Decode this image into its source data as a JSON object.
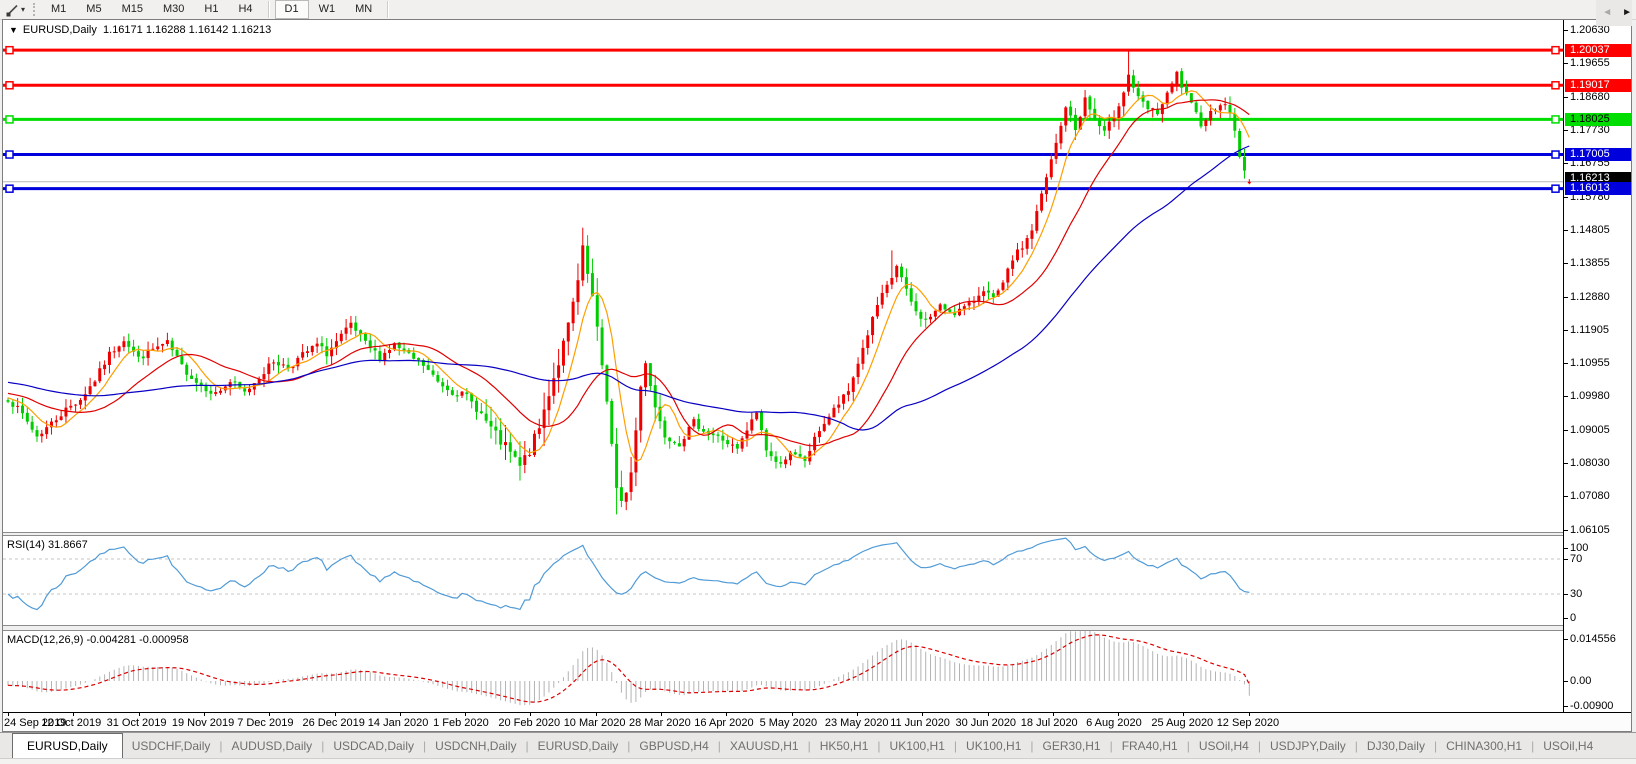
{
  "toolbar": {
    "timeframes": [
      "M1",
      "M5",
      "M15",
      "M30",
      "H1",
      "H4",
      "D1",
      "W1",
      "MN"
    ],
    "active": "D1",
    "draw_tool_caret": "▾"
  },
  "header": {
    "collapse_icon": "▼",
    "symbol": "EURUSD,Daily",
    "ohlc": "1.16171 1.16288 1.16142 1.16213"
  },
  "rsi_panel": {
    "title": "RSI(14) 31.8667",
    "axis_labels": [
      "100",
      "70",
      "30",
      "0"
    ],
    "line_color": "#509bd7",
    "level_color": "#c6c6c6"
  },
  "macd_panel": {
    "title": "MACD(12,26,9) -0.004281 -0.000958",
    "axis_labels": [
      "0.014556",
      "0.00",
      "-0.00900"
    ],
    "hist_color": "#b3b3b3",
    "signal_color": "#dd0000"
  },
  "tabs": {
    "items": [
      "EURUSD,Daily",
      "USDCHF,Daily",
      "AUDUSD,Daily",
      "USDCAD,Daily",
      "USDCNH,Daily",
      "EURUSD,Daily",
      "GBPUSD,H4",
      "XAUUSD,H1",
      "HK50,H1",
      "UK100,H1",
      "UK100,H1",
      "GER30,H1",
      "FRA40,H1",
      "USOil,H4",
      "USDJPY,Daily",
      "DJ30,Daily",
      "CHINA300,H1",
      "USOil,H4"
    ],
    "active_index": 0,
    "scroll_left": "◄",
    "scroll_right": "►"
  },
  "chart_data": {
    "type": "candlestick",
    "title": "EURUSD,Daily",
    "bars_total": 258,
    "y_ticks": [
      "1.20630",
      "1.19655",
      "1.18680",
      "1.17730",
      "1.16755",
      "1.15780",
      "1.14805",
      "1.13855",
      "1.12880",
      "1.11905",
      "1.10955",
      "1.09980",
      "1.09005",
      "1.08030",
      "1.07080",
      "1.06105"
    ],
    "x_axis_dates": [
      "24 Sep 2019",
      "12 Oct 2019",
      "31 Oct 2019",
      "19 Nov 2019",
      "7 Dec 2019",
      "26 Dec 2019",
      "14 Jan 2020",
      "1 Feb 2020",
      "20 Feb 2020",
      "10 Mar 2020",
      "28 Mar 2020",
      "16 Apr 2020",
      "5 May 2020",
      "23 May 2020",
      "11 Jun 2020",
      "30 Jun 2020",
      "18 Jul 2020",
      "6 Aug 2020",
      "25 Aug 2020",
      "12 Sep 2020"
    ],
    "close_path_anchors": [
      [
        0,
        1.0992
      ],
      [
        3,
        1.0945
      ],
      [
        6,
        1.0882
      ],
      [
        9,
        1.092
      ],
      [
        12,
        1.096
      ],
      [
        15,
        1.099
      ],
      [
        18,
        1.1045
      ],
      [
        21,
        1.112
      ],
      [
        24,
        1.1165
      ],
      [
        27,
        1.1108
      ],
      [
        30,
        1.1135
      ],
      [
        33,
        1.1152
      ],
      [
        36,
        1.1085
      ],
      [
        39,
        1.104
      ],
      [
        43,
        1.1005
      ],
      [
        46,
        1.104
      ],
      [
        49,
        1.1008
      ],
      [
        52,
        1.1055
      ],
      [
        55,
        1.11
      ],
      [
        58,
        1.1082
      ],
      [
        61,
        1.1118
      ],
      [
        64,
        1.1148
      ],
      [
        66,
        1.1122
      ],
      [
        69,
        1.1172
      ],
      [
        71,
        1.1205
      ],
      [
        74,
        1.115
      ],
      [
        77,
        1.1112
      ],
      [
        80,
        1.1148
      ],
      [
        83,
        1.1115
      ],
      [
        86,
        1.1088
      ],
      [
        89,
        1.104
      ],
      [
        92,
        1.1012
      ],
      [
        95,
        1.0998
      ],
      [
        98,
        1.0945
      ],
      [
        101,
        1.0882
      ],
      [
        104,
        1.0832
      ],
      [
        106,
        1.0792
      ],
      [
        108,
        1.084
      ],
      [
        110,
        1.0905
      ],
      [
        112,
        1.101
      ],
      [
        114,
        1.1098
      ],
      [
        116,
        1.12
      ],
      [
        118,
        1.133
      ],
      [
        119,
        1.142
      ],
      [
        120,
        1.135
      ],
      [
        121,
        1.1282
      ],
      [
        122,
        1.1185
      ],
      [
        124,
        1.0992
      ],
      [
        126,
        1.0722
      ],
      [
        127,
        1.0682
      ],
      [
        129,
        1.0775
      ],
      [
        131,
        1.1025
      ],
      [
        132,
        1.1105
      ],
      [
        134,
        1.0968
      ],
      [
        136,
        1.0885
      ],
      [
        139,
        1.0862
      ],
      [
        142,
        1.0922
      ],
      [
        145,
        1.0892
      ],
      [
        148,
        1.0872
      ],
      [
        151,
        1.0842
      ],
      [
        153,
        1.0898
      ],
      [
        155,
        1.0952
      ],
      [
        157,
        1.0845
      ],
      [
        159,
        1.0802
      ],
      [
        162,
        1.0828
      ],
      [
        165,
        1.0812
      ],
      [
        168,
        1.0902
      ],
      [
        171,
        1.0958
      ],
      [
        174,
        1.1012
      ],
      [
        177,
        1.1138
      ],
      [
        180,
        1.1262
      ],
      [
        183,
        1.1342
      ],
      [
        184,
        1.1378
      ],
      [
        186,
        1.1302
      ],
      [
        188,
        1.1242
      ],
      [
        190,
        1.1218
      ],
      [
        193,
        1.1258
      ],
      [
        196,
        1.1242
      ],
      [
        199,
        1.1262
      ],
      [
        202,
        1.1312
      ],
      [
        204,
        1.1278
      ],
      [
        206,
        1.1322
      ],
      [
        208,
        1.1398
      ],
      [
        210,
        1.1432
      ],
      [
        212,
        1.1482
      ],
      [
        214,
        1.1582
      ],
      [
        216,
        1.1682
      ],
      [
        218,
        1.1782
      ],
      [
        219,
        1.1842
      ],
      [
        221,
        1.1772
      ],
      [
        223,
        1.1862
      ],
      [
        225,
        1.1802
      ],
      [
        227,
        1.1762
      ],
      [
        229,
        1.1812
      ],
      [
        231,
        1.1885
      ],
      [
        232,
        1.1932
      ],
      [
        234,
        1.1862
      ],
      [
        236,
        1.1832
      ],
      [
        238,
        1.1822
      ],
      [
        240,
        1.1872
      ],
      [
        242,
        1.1935
      ],
      [
        243,
        1.1898
      ],
      [
        245,
        1.1842
      ],
      [
        247,
        1.1792
      ],
      [
        249,
        1.1822
      ],
      [
        251,
        1.1852
      ],
      [
        253,
        1.1825
      ],
      [
        254,
        1.1768
      ],
      [
        255,
        1.1698
      ],
      [
        256,
        1.1648
      ],
      [
        257,
        1.16213
      ]
    ],
    "special_bars": {
      "119": {
        "h": 1.1488
      },
      "126": {
        "l": 1.0655
      },
      "183": {
        "h": 1.1422
      },
      "232": {
        "h": 1.2003
      },
      "257": {
        "o": 1.16171,
        "h": 1.16288,
        "l": 1.16142,
        "c": 1.16213
      }
    },
    "horizontal_levels": [
      {
        "price": 1.20037,
        "label": "1.20037",
        "color": "#ff0000",
        "text_color": "#ffffff"
      },
      {
        "price": 1.19017,
        "label": "1.19017",
        "color": "#ff0000",
        "text_color": "#ffffff"
      },
      {
        "price": 1.18025,
        "label": "1.18025",
        "color": "#00dd00",
        "text_color": "#000000"
      },
      {
        "price": 1.17005,
        "label": "1.17005",
        "color": "#0000dd",
        "text_color": "#ffffff"
      },
      {
        "price": 1.16013,
        "label": "1.16013",
        "color": "#0000dd",
        "text_color": "#ffffff"
      }
    ],
    "current_price": {
      "value": 1.16213,
      "label": "1.16213",
      "line_color": "#b9b9b9",
      "tag_bg": "#000000",
      "tag_text": "#ffffff"
    },
    "last_bar_ohlc": {
      "open": 1.16171,
      "high": 1.16288,
      "low": 1.16142,
      "close": 1.16213
    },
    "candle_colors": {
      "bull": "#ee0000",
      "bear": "#00cd00"
    },
    "moving_averages": [
      {
        "period": 7,
        "color": "#ff9e00"
      },
      {
        "period": 20,
        "color": "#e00000"
      },
      {
        "period": 55,
        "color": "#0a00c3"
      }
    ],
    "indicators": [
      {
        "name": "RSI",
        "period": 14,
        "current": 31.8667,
        "range": [
          0,
          100
        ],
        "levels": [
          30,
          70
        ]
      },
      {
        "name": "MACD",
        "params": [
          12,
          26,
          9
        ],
        "main": -0.004281,
        "signal": -0.000958,
        "range": [
          -0.009,
          0.014556
        ]
      }
    ]
  }
}
